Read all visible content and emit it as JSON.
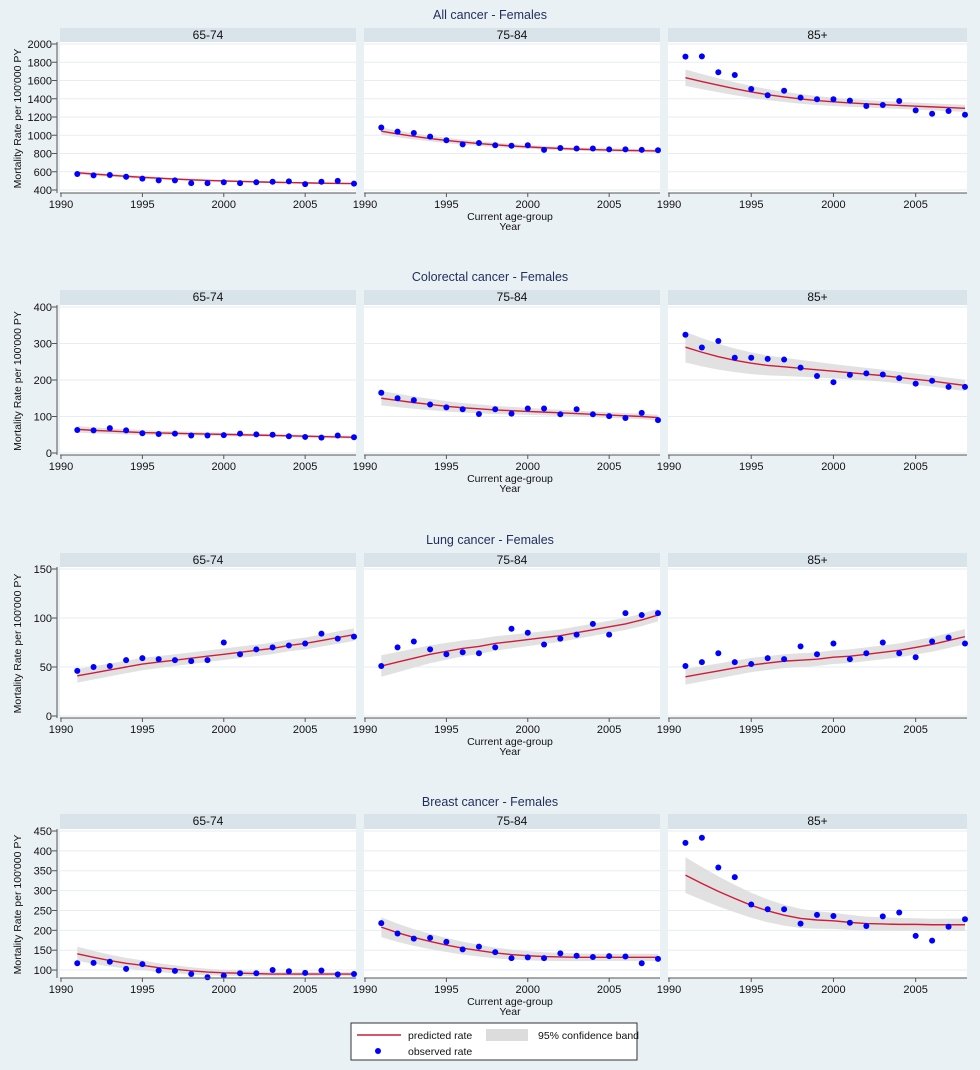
{
  "chart_data": {
    "type": "line",
    "layout": "4 rows x 3 columns of small multiples",
    "x_label_lines": [
      "Current age-group",
      "Year"
    ],
    "y_label": "Mortality Rate per 100'000 PY",
    "x": [
      1991,
      1992,
      1993,
      1994,
      1995,
      1996,
      1997,
      1998,
      1999,
      2000,
      2001,
      2002,
      2003,
      2004,
      2005,
      2006,
      2007,
      2008
    ],
    "xlim": [
      1990,
      2008
    ],
    "x_ticks": [
      1990,
      1995,
      2000,
      2005
    ],
    "grid": true,
    "legend": {
      "placement": "bottom-center",
      "items": [
        {
          "label": "predicted rate",
          "kind": "line"
        },
        {
          "label": "95% confidence band",
          "kind": "band"
        },
        {
          "label": "observed rate",
          "kind": "marker"
        }
      ]
    },
    "colors": {
      "predicted": "#d01c3c",
      "observed": "#0000ff",
      "band": "#dcdcdc",
      "header": "#d9e4ea",
      "background": "#eaf1f4",
      "title": "#1f2e5c"
    },
    "rows": [
      {
        "title": "All cancer - Females",
        "ylim": [
          400,
          2000
        ],
        "y_ticks": [
          400,
          600,
          800,
          1000,
          1200,
          1400,
          1600,
          1800,
          2000
        ],
        "panels": [
          {
            "label": "65-74",
            "observed": [
              575,
              560,
              565,
              545,
              525,
              505,
              505,
              475,
              475,
              485,
              475,
              485,
              490,
              495,
              465,
              490,
              500,
              470
            ],
            "predicted": [
              590,
              575,
              562,
              550,
              539,
              529,
              520,
              512,
              505,
              499,
              494,
              489,
              485,
              481,
              478,
              475,
              472,
              470
            ],
            "ci_halfwidth": [
              20,
              8
            ]
          },
          {
            "label": "75-84",
            "observed": [
              1085,
              1040,
              1025,
              985,
              945,
              900,
              915,
              890,
              885,
              890,
              840,
              860,
              855,
              855,
              845,
              845,
              840,
              835
            ],
            "predicted": [
              1045,
              1015,
              988,
              964,
              943,
              925,
              909,
              895,
              883,
              872,
              863,
              855,
              848,
              843,
              838,
              834,
              831,
              828
            ],
            "ci_halfwidth": [
              40,
              14
            ]
          },
          {
            "label": "85+",
            "observed": [
              1861,
              1865,
              1690,
              1660,
              1507,
              1438,
              1488,
              1412,
              1394,
              1394,
              1379,
              1320,
              1331,
              1375,
              1273,
              1236,
              1266,
              1225
            ],
            "predicted": [
              1631,
              1588,
              1548,
              1510,
              1475,
              1445,
              1420,
              1398,
              1380,
              1366,
              1354,
              1344,
              1335,
              1327,
              1319,
              1311,
              1303,
              1295
            ],
            "ci_halfwidth": [
              90,
              30
            ]
          }
        ]
      },
      {
        "title": "Colorectal cancer - Females",
        "ylim": [
          0,
          400
        ],
        "y_ticks": [
          0,
          100,
          200,
          300,
          400
        ],
        "panels": [
          {
            "label": "65-74",
            "observed": [
              63,
              62,
              68,
              62,
              54,
              52,
              53,
              48,
              48,
              49,
              53,
              51,
              50,
              46,
              44,
              42,
              48,
              43
            ],
            "predicted": [
              65,
              62,
              60,
              58,
              56,
              55,
              54,
              53,
              52,
              51,
              50,
              49,
              48,
              47,
              46,
              45,
              44,
              43
            ],
            "ci_halfwidth": [
              9,
              3
            ]
          },
          {
            "label": "75-84",
            "observed": [
              165,
              150,
              145,
              133,
              125,
              120,
              107,
              120,
              108,
              122,
              122,
              106,
              120,
              106,
              101,
              96,
              110,
              90
            ],
            "predicted": [
              150,
              144,
              138,
              133,
              128,
              124,
              121,
              118,
              116,
              114,
              112,
              110,
              108,
              106,
              104,
              102,
              100,
              97
            ],
            "ci_halfwidth": [
              20,
              6
            ]
          },
          {
            "label": "85+",
            "observed": [
              324,
              289,
              307,
              261,
              261,
              258,
              256,
              234,
              211,
              194,
              214,
              218,
              215,
              205,
              190,
              198,
              181,
              181
            ],
            "predicted": [
              290,
              276,
              264,
              254,
              246,
              240,
              236,
              232,
              228,
              224,
              220,
              216,
              212,
              207,
              202,
              197,
              191,
              185
            ],
            "ci_halfwidth": [
              42,
              12
            ]
          }
        ]
      },
      {
        "title": "Lung cancer - Females",
        "ylim": [
          0,
          150
        ],
        "y_ticks": [
          0,
          50,
          100,
          150
        ],
        "panels": [
          {
            "label": "65-74",
            "observed": [
              46,
              50,
              51,
              57,
              59,
              58,
              57,
              56,
              57,
              75,
              63,
              68,
              70,
              72,
              74,
              84,
              79,
              81
            ],
            "predicted": [
              41,
              44,
              47,
              50,
              53,
              55,
              57,
              59,
              61,
              63,
              65,
              67,
              69,
              72,
              74,
              77,
              80,
              83
            ],
            "ci_halfwidth": [
              7,
              5
            ]
          },
          {
            "label": "75-84",
            "observed": [
              51,
              70,
              76,
              68,
              63,
              65,
              64,
              70,
              89,
              85,
              73,
              79,
              83,
              94,
              83,
              105,
              103,
              105
            ],
            "predicted": [
              51,
              55,
              59,
              63,
              66,
              69,
              71,
              74,
              76,
              78,
              80,
              82,
              85,
              88,
              91,
              94,
              98,
              103
            ],
            "ci_halfwidth": [
              11,
              5
            ]
          },
          {
            "label": "85+",
            "observed": [
              51,
              55,
              64,
              55,
              53,
              59,
              58,
              71,
              63,
              74,
              58,
              64,
              75,
              64,
              60,
              76,
              80,
              74
            ],
            "predicted": [
              40,
              43,
              46,
              49,
              52,
              54,
              56,
              57,
              58,
              60,
              61,
              63,
              65,
              67,
              70,
              73,
              77,
              81
            ],
            "ci_halfwidth": [
              8,
              6
            ]
          }
        ]
      },
      {
        "title": "Breast cancer - Females",
        "ylim": [
          80,
          450
        ],
        "y_ticks": [
          100,
          150,
          200,
          250,
          300,
          350,
          400,
          450
        ],
        "panels": [
          {
            "label": "65-74",
            "observed": [
              117,
              118,
              121,
              103,
              115,
              99,
              98,
              90,
              82,
              86,
              92,
              92,
              100,
              97,
              93,
              99,
              89,
              90
            ],
            "predicted": [
              141,
              132,
              124,
              117,
              112,
              106,
              102,
              98,
              95,
              93,
              92,
              91,
              90,
              90,
              90,
              90,
              90,
              90
            ],
            "ci_halfwidth": [
              18,
              4
            ]
          },
          {
            "label": "75-84",
            "observed": [
              218,
              192,
              179,
              181,
              171,
              152,
              159,
              145,
              130,
              132,
              130,
              142,
              136,
              133,
              135,
              134,
              117,
              128
            ],
            "predicted": [
              208,
              194,
              182,
              172,
              163,
              155,
              149,
              143,
              139,
              136,
              134,
              133,
              132,
              132,
              132,
              132,
              132,
              132
            ],
            "ci_halfwidth": [
              25,
              7
            ]
          },
          {
            "label": "85+",
            "observed": [
              420,
              433,
              358,
              334,
              265,
              253,
              253,
              217,
              239,
              236,
              219,
              211,
              235,
              245,
              186,
              174,
              209,
              228
            ],
            "predicted": [
              339,
              318,
              298,
              280,
              263,
              249,
              238,
              230,
              226,
              224,
              220,
              217,
              216,
              215,
              215,
              214,
              214,
              214
            ],
            "ci_halfwidth": [
              45,
              12
            ]
          }
        ]
      }
    ]
  }
}
